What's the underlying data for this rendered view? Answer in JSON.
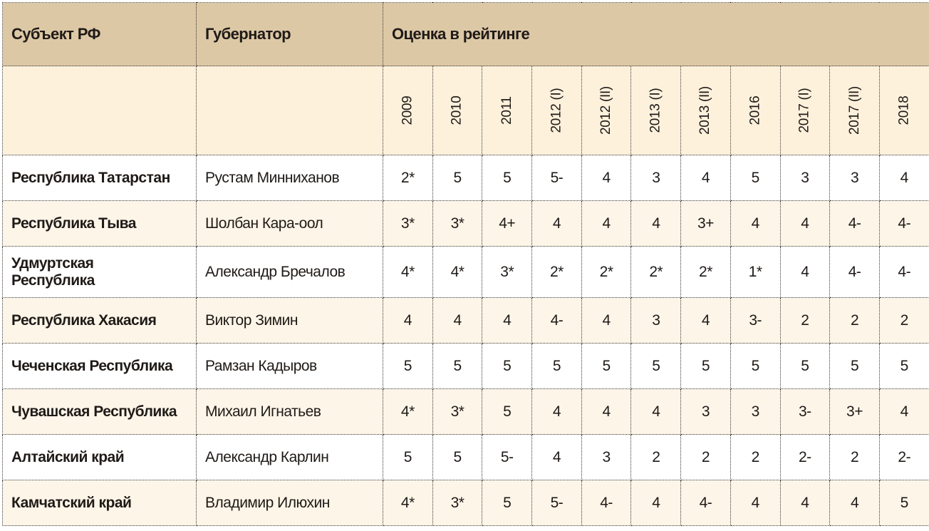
{
  "header": {
    "region": "Субъект РФ",
    "governor": "Губернатор",
    "rating": "Оценка в рейтинге"
  },
  "years": [
    "2009",
    "2010",
    "2011",
    "2012 (I)",
    "2012 (II)",
    "2013 (I)",
    "2013 (II)",
    "2016",
    "2017 (I)",
    "2017 (II)",
    "2018"
  ],
  "colors": {
    "header_bg": "#ddc8a6",
    "subheader_bg": "#fdf1dc",
    "alt_row_bg": "#fdf5e8"
  },
  "rows": [
    {
      "region": "Республика Татарстан",
      "governor": "Рустам Минниханов",
      "scores": [
        "2*",
        "5",
        "5",
        "5-",
        "4",
        "3",
        "4",
        "5",
        "3",
        "3",
        "4"
      ]
    },
    {
      "region": "Республика Тыва",
      "governor": "Шолбан Кара-оол",
      "scores": [
        "3*",
        "3*",
        "4+",
        "4",
        "4",
        "4",
        "3+",
        "4",
        "4",
        "4-",
        "4-"
      ]
    },
    {
      "region": "Удмуртская Республика",
      "governor": "Александр Бречалов",
      "scores": [
        "4*",
        "4*",
        "3*",
        "2*",
        "2*",
        "2*",
        "2*",
        "1*",
        "4",
        "4-",
        "4-"
      ]
    },
    {
      "region": "Республика Хакасия",
      "governor": "Виктор Зимин",
      "scores": [
        "4",
        "4",
        "4",
        "4-",
        "4",
        "3",
        "4",
        "3-",
        "2",
        "2",
        "2"
      ]
    },
    {
      "region": "Чеченская Республика",
      "governor": "Рамзан Кадыров",
      "scores": [
        "5",
        "5",
        "5",
        "5",
        "5",
        "5",
        "5",
        "5",
        "5",
        "5",
        "5"
      ]
    },
    {
      "region": "Чувашская Республика",
      "governor": "Михаил Игнатьев",
      "scores": [
        "4*",
        "3*",
        "5",
        "4",
        "4",
        "4",
        "3",
        "3",
        "3-",
        "3+",
        "4"
      ]
    },
    {
      "region": "Алтайский край",
      "governor": "Александр Карлин",
      "scores": [
        "5",
        "5",
        "5-",
        "4",
        "3",
        "2",
        "2",
        "2",
        "2-",
        "2",
        "2-"
      ]
    },
    {
      "region": "Камчатский край",
      "governor": "Владимир Илюхин",
      "scores": [
        "4*",
        "3*",
        "5",
        "5-",
        "4-",
        "4",
        "4-",
        "4",
        "4",
        "4",
        "5"
      ]
    }
  ]
}
